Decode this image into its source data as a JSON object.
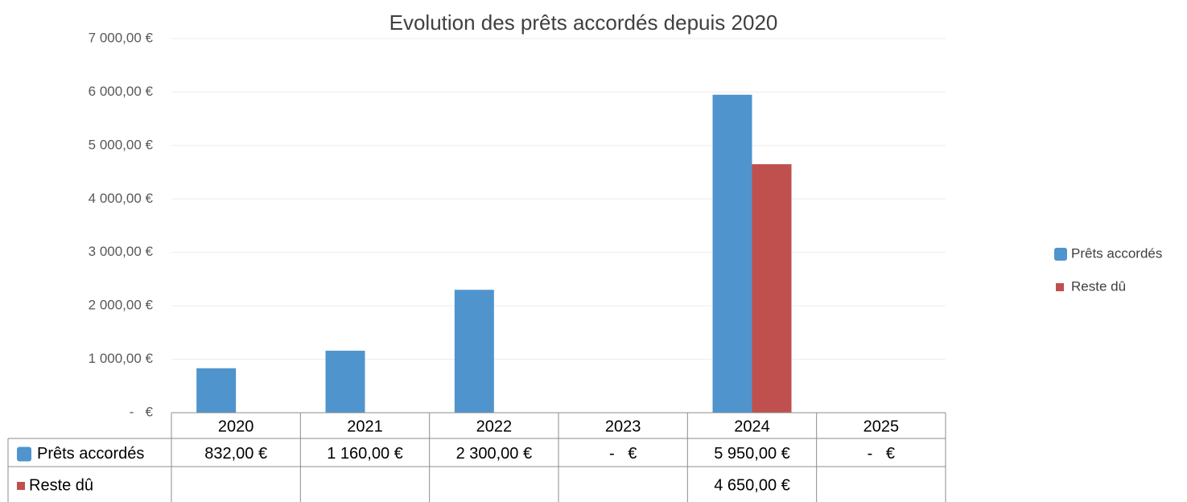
{
  "chart_data": {
    "type": "bar",
    "title": "Evolution des prêts accordés depuis 2020",
    "categories": [
      "2020",
      "2021",
      "2022",
      "2023",
      "2024",
      "2025"
    ],
    "series": [
      {
        "name": "Prêts accordés",
        "color": "#4f94cd",
        "values": [
          832,
          1160,
          2300,
          0,
          5950,
          0
        ],
        "value_labels": [
          "832,00 €",
          "1 160,00 €",
          "2 300,00 €",
          "-   €",
          "5 950,00 €",
          "-   €"
        ]
      },
      {
        "name": "Reste dû",
        "color": "#c0504d",
        "values": [
          null,
          null,
          null,
          null,
          4650,
          null
        ],
        "value_labels": [
          null,
          null,
          null,
          null,
          "4 650,00 €",
          null
        ]
      }
    ],
    "ylim": [
      0,
      7000
    ],
    "yticks": [
      {
        "value": 0,
        "label": "-   €"
      },
      {
        "value": 1000,
        "label": "1 000,00 €"
      },
      {
        "value": 2000,
        "label": "2 000,00 €"
      },
      {
        "value": 3000,
        "label": "3 000,00 €"
      },
      {
        "value": 4000,
        "label": "4 000,00 €"
      },
      {
        "value": 5000,
        "label": "5 000,00 €"
      },
      {
        "value": 6000,
        "label": "6 000,00 €"
      },
      {
        "value": 7000,
        "label": "7 000,00 €"
      }
    ],
    "grid": true,
    "legend": "right"
  }
}
